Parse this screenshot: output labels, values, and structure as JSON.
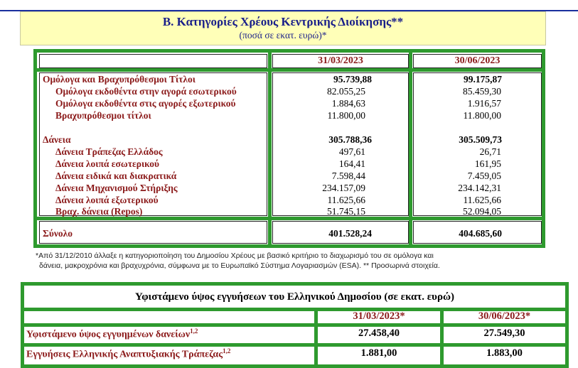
{
  "header": {
    "title": "Β. Κατηγορίες Χρέους Κεντρικής Διοίκησης**",
    "subtitle": "(ποσά σε εκατ. ευρώ)*"
  },
  "table1": {
    "dates": [
      "31/03/2023",
      "30/06/2023"
    ],
    "rows": [
      {
        "label": "Ομόλογα και Βραχυπρόθεσμοι Τίτλοι",
        "v1": "95.739,88",
        "v2": "99.175,87"
      },
      {
        "label": "Ομόλογα εκδοθέντα στην αγορά εσωτερικού",
        "v1": "82.055,25",
        "v2": "85.459,30"
      },
      {
        "label": "Ομόλογα εκδοθέντα στις αγορές εξωτερικού",
        "v1": "1.884,63",
        "v2": "1.916,57"
      },
      {
        "label": "Βραχυπρόθεσμοι τίτλοι",
        "v1": "11.800,00",
        "v2": "11.800,00"
      },
      {
        "label": "Δάνεια",
        "v1": "305.788,36",
        "v2": "305.509,73"
      },
      {
        "label": "Δάνεια Τράπεζας Ελλάδος",
        "v1": "497,61",
        "v2": "26,71"
      },
      {
        "label": "Δάνεια λοιπά εσωτερικού",
        "v1": "164,41",
        "v2": "161,95"
      },
      {
        "label": "Δάνεια ειδικά και διακρατικά",
        "v1": "7.598,44",
        "v2": "7.459,05"
      },
      {
        "label": "Δάνεια Μηχανισμού Στήριξης",
        "v1": "234.157,09",
        "v2": "234.142,31"
      },
      {
        "label": "Δάνεια λοιπά εξωτερικού",
        "v1": "11.625,66",
        "v2": "11.625,66"
      },
      {
        "label": "Βραχ. δάνεια (Repos)",
        "v1": "51.745,15",
        "v2": "52.094,05"
      }
    ],
    "total": {
      "label": "Σύνολο",
      "v1": "401.528,24",
      "v2": "404.685,60"
    }
  },
  "note": {
    "line1": "*Από 31/12/2010 άλλαξε η κατηγοριοποίηση του Δημοσίου Χρέους με βασικό κριτήριο το διαχωρισμό του σε ομόλογα και",
    "line2": "δάνεια, μακροχρόνια και βραχυχρόνια, σύμφωνα με το Ευρωπαϊκό Σύστημα Λογαριασμών (ESA). ** Προσωρινά στοιχεία."
  },
  "table2": {
    "title": "Υφιστάμενο ύψος εγγυήσεων του Ελληνικού Δημοσίου (σε εκατ. ευρώ)",
    "dates": [
      "31/03/2023*",
      "30/06/2023*"
    ],
    "rows": [
      {
        "label": "Υφιστάμενο ύψος εγγυημένων δανείων",
        "sup": "1,2",
        "v1": "27.458,40",
        "v2": "27.549,30"
      },
      {
        "label": "Εγγυήσεις Ελληνικής Αναπτυξιακής Τράπεζας",
        "sup": "1,2",
        "v1": "1.881,00",
        "v2": "1.883,00"
      }
    ]
  }
}
